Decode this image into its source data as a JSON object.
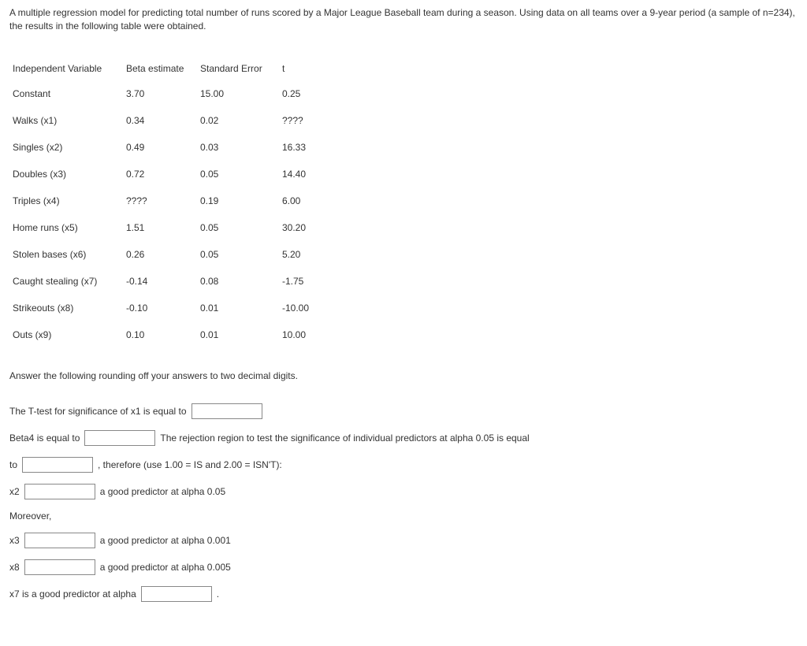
{
  "intro": "A multiple regression model for predicting total number of runs scored by a Major League Baseball team during a season. Using data on all teams over a 9-year period (a sample of n=234), the results in the following table were obtained.",
  "table": {
    "headers": [
      "Independent Variable",
      "Beta estimate",
      "Standard Error",
      "t"
    ],
    "rows": [
      [
        "Constant",
        "3.70",
        "15.00",
        "0.25"
      ],
      [
        "Walks (x1)",
        "0.34",
        "0.02",
        "????"
      ],
      [
        "Singles (x2)",
        "0.49",
        "0.03",
        "16.33"
      ],
      [
        "Doubles (x3)",
        "0.72",
        "0.05",
        "14.40"
      ],
      [
        "Triples (x4)",
        "????",
        "0.19",
        "6.00"
      ],
      [
        "Home runs (x5)",
        "1.51",
        "0.05",
        "30.20"
      ],
      [
        "Stolen bases (x6)",
        "0.26",
        "0.05",
        "5.20"
      ],
      [
        "Caught stealing (x7)",
        "-0.14",
        "0.08",
        "-1.75"
      ],
      [
        "Strikeouts (x8)",
        "-0.10",
        "0.01",
        "-10.00"
      ],
      [
        "Outs (x9)",
        "0.10",
        "0.01",
        "10.00"
      ]
    ]
  },
  "instr": "Answer the following rounding off your answers to two decimal digits.",
  "q1_pre": "The T-test for significance of x1 is equal to",
  "q2_pre": "Beta4 is equal to",
  "q2_post": "The rejection region to test the significance of individual predictors at alpha 0.05 is equal",
  "q3_pre": "to",
  "q3_post": ", therefore (use 1.00 = IS and 2.00 = ISN'T):",
  "q4_pre": "x2",
  "q4_post": "a good predictor at alpha 0.05",
  "moreover": "Moreover,",
  "q5_pre": "x3",
  "q5_post": "a good predictor at alpha 0.001",
  "q6_pre": "x8",
  "q6_post": "a good predictor at alpha 0.005",
  "q7_pre": "x7 is a good predictor at alpha",
  "q7_post": "."
}
